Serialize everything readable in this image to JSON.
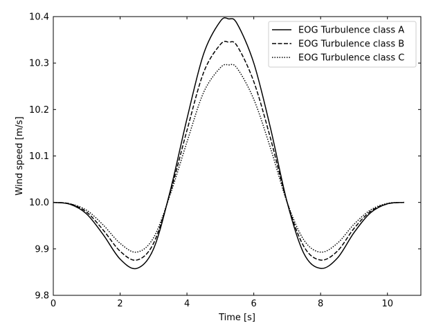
{
  "chart_data": {
    "type": "line",
    "title": "",
    "xlabel": "Time [s]",
    "ylabel": "Wind speed [m/s]",
    "xlim": [
      0,
      11
    ],
    "ylim": [
      9.8,
      10.4
    ],
    "xticks": [
      0,
      2,
      4,
      6,
      8,
      10
    ],
    "yticks": [
      9.8,
      9.9,
      10.0,
      10.1,
      10.2,
      10.3,
      10.4
    ],
    "xtick_labels": [
      "0",
      "2",
      "4",
      "6",
      "8",
      "10"
    ],
    "ytick_labels": [
      "9.8",
      "9.9",
      "10.0",
      "10.1",
      "10.2",
      "10.3",
      "10.4"
    ],
    "grid": false,
    "legend_position": "top-right",
    "x": [
      0.0,
      0.5,
      1.0,
      1.5,
      2.0,
      2.5,
      3.0,
      3.5,
      4.0,
      4.5,
      5.0,
      5.25,
      5.5,
      6.0,
      6.5,
      7.0,
      7.5,
      8.0,
      8.5,
      9.0,
      9.5,
      10.0,
      10.5
    ],
    "series": [
      {
        "name": "EOG Turbulence class A",
        "line_style": "solid",
        "color": "#000000",
        "values": [
          10.0,
          9.996,
          9.975,
          9.93,
          9.878,
          9.858,
          9.9,
          10.025,
          10.18,
          10.32,
          10.39,
          10.395,
          10.385,
          10.3,
          10.16,
          10.0,
          9.89,
          9.858,
          9.88,
          9.935,
          9.978,
          9.997,
          10.0
        ]
      },
      {
        "name": "EOG Turbulence class B",
        "line_style": "dashed",
        "color": "#000000",
        "values": [
          10.0,
          9.997,
          9.979,
          9.94,
          9.895,
          9.876,
          9.912,
          10.021,
          10.155,
          10.28,
          10.34,
          10.345,
          10.337,
          10.26,
          10.138,
          10.0,
          9.905,
          9.876,
          9.895,
          9.944,
          9.981,
          9.997,
          10.0
        ]
      },
      {
        "name": "EOG Turbulence class C",
        "line_style": "dotted",
        "color": "#000000",
        "values": [
          10.0,
          9.997,
          9.983,
          9.951,
          9.912,
          9.893,
          9.924,
          10.017,
          10.13,
          10.237,
          10.29,
          10.296,
          10.289,
          10.222,
          10.117,
          10.0,
          9.919,
          9.893,
          9.912,
          9.953,
          9.984,
          9.998,
          10.0
        ]
      }
    ]
  }
}
